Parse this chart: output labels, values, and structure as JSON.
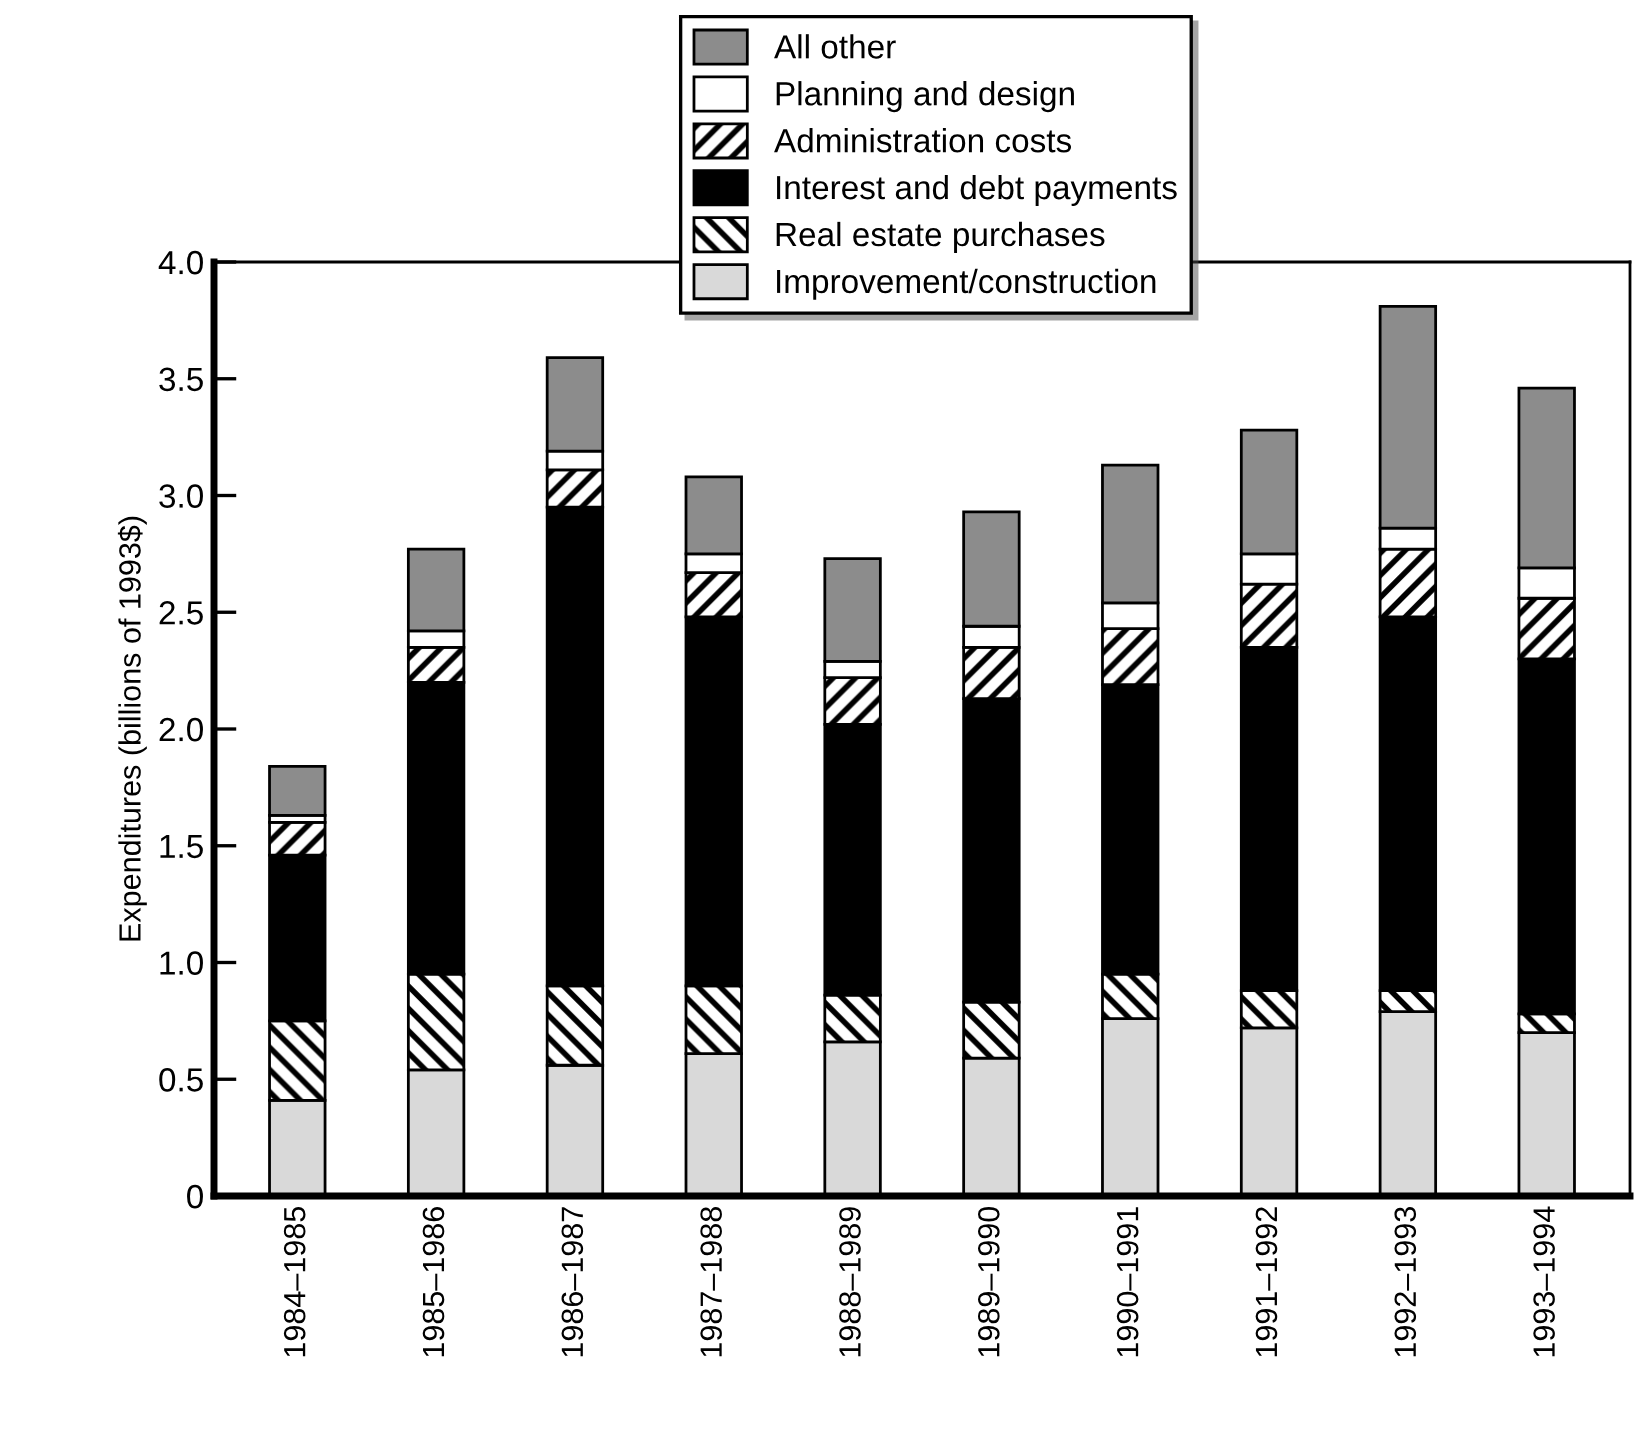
{
  "chart_data": {
    "type": "bar",
    "stacked": true,
    "ylabel": "Expenditures (billions of 1993$)",
    "categories": [
      "1984–1985",
      "1985–1986",
      "1986–1987",
      "1987–1988",
      "1988–1989",
      "1989–1990",
      "1990–1991",
      "1991–1992",
      "1992–1993",
      "1993–1994"
    ],
    "series": [
      {
        "name": "Improvement/construction",
        "color": "#d9d9d9",
        "values": [
          0.41,
          0.54,
          0.56,
          0.61,
          0.66,
          0.59,
          0.76,
          0.72,
          0.79,
          0.7
        ]
      },
      {
        "name": "Real estate purchases",
        "color": "#000000",
        "values": [
          0.34,
          0.41,
          0.34,
          0.29,
          0.2,
          0.24,
          0.19,
          0.16,
          0.09,
          0.08
        ]
      },
      {
        "name": "Interest and debt payments",
        "color": "#000000",
        "values": [
          0.71,
          1.25,
          2.05,
          1.58,
          1.16,
          1.3,
          1.24,
          1.47,
          1.6,
          1.52
        ]
      },
      {
        "name": "Administration costs",
        "color": "#000000",
        "values": [
          0.14,
          0.15,
          0.16,
          0.19,
          0.2,
          0.22,
          0.24,
          0.27,
          0.29,
          0.26
        ]
      },
      {
        "name": "Planning and design",
        "color": "#ffffff",
        "values": [
          0.03,
          0.07,
          0.08,
          0.08,
          0.07,
          0.09,
          0.11,
          0.13,
          0.09,
          0.13
        ]
      },
      {
        "name": "All other",
        "color": "#8c8c8c",
        "values": [
          0.21,
          0.35,
          0.4,
          0.33,
          0.44,
          0.49,
          0.59,
          0.53,
          0.95,
          0.77
        ]
      }
    ],
    "ylim": [
      0,
      4
    ],
    "yticks": [
      0,
      {
        "value": 0.5,
        "label": "0.5"
      },
      {
        "value": 1,
        "label": "1.0"
      },
      {
        "value": 1.5,
        "label": "1.5"
      },
      {
        "value": 2,
        "label": "2.0"
      },
      {
        "value": 2.5,
        "label": "2.5"
      },
      {
        "value": 3,
        "label": "3.0"
      },
      {
        "value": 3.5,
        "label": "3.5"
      },
      {
        "value": 4,
        "label": "4.0"
      }
    ],
    "grid": false,
    "legend": "top"
  }
}
